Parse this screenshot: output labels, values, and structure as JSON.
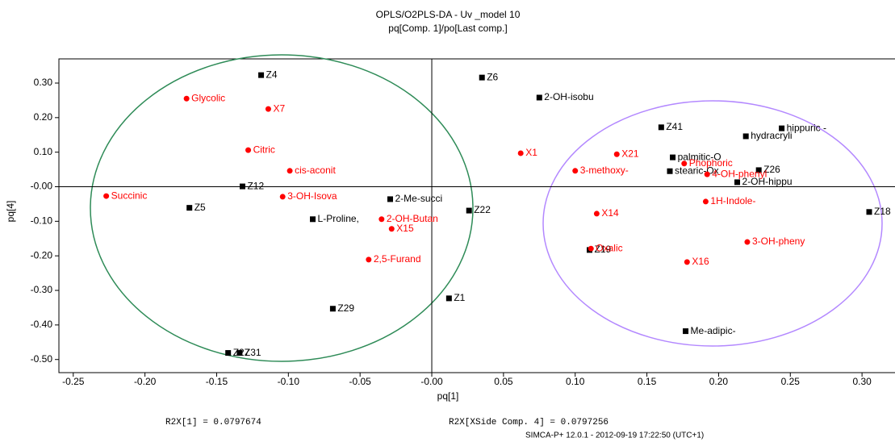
{
  "chart_data": {
    "type": "scatter",
    "title": "OPLS/O2PLS-DA - Uv _model 10",
    "subtitle": "pq[Comp. 1]/po[Last comp.]",
    "xlabel": "pq[1]",
    "ylabel": "pq[4]",
    "xlim": [
      -0.26,
      0.323
    ],
    "ylim": [
      -0.538,
      0.37
    ],
    "xticks": [
      {
        "value": -0.25,
        "label": "-0.25"
      },
      {
        "value": -0.2,
        "label": "-0.20"
      },
      {
        "value": -0.15,
        "label": "-0.15"
      },
      {
        "value": -0.1,
        "label": "-0.10"
      },
      {
        "value": -0.05,
        "label": "-0.05"
      },
      {
        "value": 0,
        "label": "-0.00"
      },
      {
        "value": 0.05,
        "label": "0.05"
      },
      {
        "value": 0.1,
        "label": "0.10"
      },
      {
        "value": 0.15,
        "label": "0.15"
      },
      {
        "value": 0.2,
        "label": "0.20"
      },
      {
        "value": 0.25,
        "label": "0.25"
      },
      {
        "value": 0.3,
        "label": "0.30"
      }
    ],
    "yticks": [
      {
        "value": 0.3,
        "label": "0.30"
      },
      {
        "value": 0.2,
        "label": "0.20"
      },
      {
        "value": 0.1,
        "label": "0.10"
      },
      {
        "value": 0,
        "label": "-0.00"
      },
      {
        "value": -0.1,
        "label": "-0.10"
      },
      {
        "value": -0.2,
        "label": "-0.20"
      },
      {
        "value": -0.3,
        "label": "-0.30"
      },
      {
        "value": -0.4,
        "label": "-0.40"
      },
      {
        "value": -0.5,
        "label": "-0.50"
      }
    ],
    "series": [
      {
        "color": "#000000",
        "marker": "square",
        "labels": [
          "Z4",
          "Z6",
          "2-OH-isobu",
          "Z41",
          "hydracryli",
          "hippuric -",
          "palmitic-O",
          "stearic-Ox",
          "Z26",
          "2-OH-hippu",
          "Z12",
          "Z5",
          "2-Me-succi",
          "L-Proline,",
          "Z22",
          "Z18",
          "Z19",
          "Z1",
          "Z29",
          "Me-adipic-",
          "Z27",
          "Z31"
        ],
        "x": [
          -0.119,
          0.035,
          0.075,
          0.16,
          0.219,
          0.244,
          0.168,
          0.166,
          0.228,
          0.213,
          -0.132,
          -0.169,
          -0.029,
          -0.083,
          0.026,
          0.305,
          0.11,
          0.012,
          -0.069,
          0.177,
          -0.142,
          -0.134
        ],
        "values": [
          0.323,
          0.316,
          0.258,
          0.172,
          0.146,
          0.169,
          0.085,
          0.045,
          0.048,
          0.013,
          0.001,
          -0.061,
          -0.036,
          -0.094,
          -0.069,
          -0.073,
          -0.183,
          -0.323,
          -0.353,
          -0.418,
          -0.481,
          -0.481
        ]
      },
      {
        "color": "#ff0000",
        "marker": "circle",
        "labels": [
          "Glycolic",
          "X7",
          "Citric",
          "cis-aconit",
          "Succinic",
          "3-OH-Isova",
          "2-OH-Butan",
          "X15",
          "2,5-Furand",
          "X1",
          "X21",
          "3-methoxy-",
          "Phophoric",
          "4-OH-phenyl",
          "1H-Indole-",
          "X14",
          "Oxalic",
          "3-OH-pheny",
          "X16"
        ],
        "x": [
          -0.171,
          -0.114,
          -0.128,
          -0.099,
          -0.227,
          -0.104,
          -0.035,
          -0.028,
          -0.044,
          0.062,
          0.129,
          0.1,
          0.176,
          0.192,
          0.191,
          0.115,
          0.111,
          0.22,
          0.178
        ],
        "values": [
          0.255,
          0.225,
          0.106,
          0.046,
          -0.027,
          -0.029,
          -0.094,
          -0.122,
          -0.211,
          0.097,
          0.094,
          0.046,
          0.067,
          0.036,
          -0.043,
          -0.078,
          -0.179,
          -0.16,
          -0.218
        ]
      }
    ],
    "footnotes": [
      "R2X[1] = 0.0797674",
      "R2X[XSide Comp. 4] = 0.0797256",
      "SIMCA-P+ 12.0.1 - 2012-09-19 17:22:50 (UTC+1)"
    ]
  }
}
